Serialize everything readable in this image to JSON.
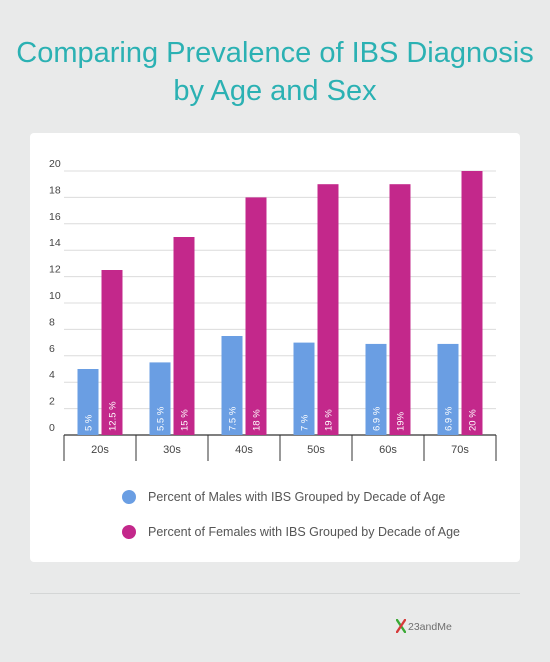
{
  "title_lines": [
    "Comparing Prevalence of IBS Diagnosis",
    "by Age and Sex"
  ],
  "colors": {
    "title": "#2bb1b3",
    "background": "#e9eaea",
    "males": "#6a9ee3",
    "females": "#c3288b",
    "logo_x_green": "#3aa935",
    "logo_x_red": "#d63a3a"
  },
  "chart_data": {
    "type": "bar",
    "title": "Comparing Prevalence of IBS Diagnosis by Age and Sex",
    "categories": [
      "20s",
      "30s",
      "40s",
      "50s",
      "60s",
      "70s"
    ],
    "series": [
      {
        "name": "Percent of Males with IBS Grouped by Decade of Age",
        "values": [
          5,
          5.5,
          7.5,
          7,
          6.9,
          6.9
        ],
        "labels": [
          "5 %",
          "5.5 %",
          "7.5 %",
          "7 %",
          "6.9 %",
          "6.9 %"
        ],
        "color": "#6a9ee3"
      },
      {
        "name": "Percent of Females with IBS Grouped by Decade of Age",
        "values": [
          12.5,
          15,
          18,
          19,
          19,
          20
        ],
        "labels": [
          "12.5 %",
          "15 %",
          "18 %",
          "19 %",
          "19%",
          "20 %"
        ],
        "color": "#c3288b"
      }
    ],
    "yticks": [
      0,
      2,
      4,
      6,
      8,
      10,
      12,
      14,
      16,
      18,
      20
    ],
    "ylim": [
      0,
      20
    ],
    "grid": true,
    "legend": "bottom"
  },
  "logo": {
    "text": "23andMe",
    "mark": "X"
  }
}
